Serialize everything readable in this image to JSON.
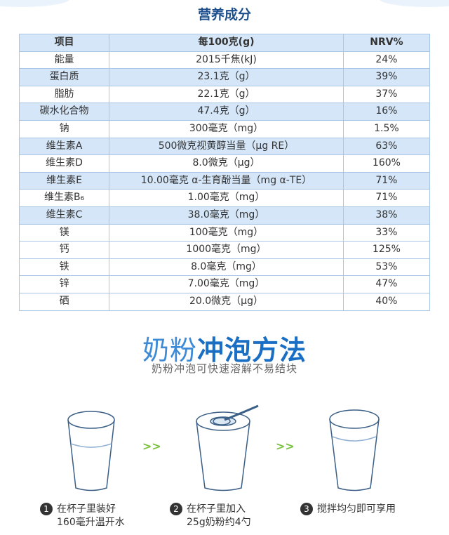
{
  "title": "营养成分",
  "table": {
    "header": [
      "项目",
      "每100克(g)",
      "NRV%"
    ],
    "rows": [
      [
        "能量",
        "2015千焦(kJ)",
        "24%"
      ],
      [
        "蛋白质",
        "23.1克（g）",
        "39%"
      ],
      [
        "脂肪",
        "22.1克（g）",
        "37%"
      ],
      [
        "碳水化合物",
        "47.4克（g）",
        "16%"
      ],
      [
        "钠",
        "300毫克（mg）",
        "1.5%"
      ],
      [
        "维生素A",
        "500微克视黄醇当量（μg RE）",
        "63%"
      ],
      [
        "维生素D",
        "8.0微克（μg）",
        "160%"
      ],
      [
        "维生素E",
        "10.00毫克 α-生育酚当量（mg α-TE）",
        "71%"
      ],
      [
        "维生素B₆",
        "1.00毫克（mg）",
        "71%"
      ],
      [
        "维生素C",
        "38.0毫克（mg）",
        "38%"
      ],
      [
        "镁",
        "100毫克（mg）",
        "33%"
      ],
      [
        "钙",
        "1000毫克（mg）",
        "125%"
      ],
      [
        "铁",
        "8.0毫克（mg）",
        "53%"
      ],
      [
        "锌",
        "7.00毫克（mg）",
        "47%"
      ],
      [
        "硒",
        "20.0微克（μg）",
        "40%"
      ]
    ]
  },
  "method": {
    "title_light": "奶粉",
    "title_bold": "冲泡方法",
    "subtitle": "奶粉冲泡可快速溶解不易结块",
    "arrows": [
      ">>",
      ">>"
    ],
    "steps": [
      {
        "number": "1",
        "lines": [
          "在杯子里装好",
          "160毫升温开水"
        ]
      },
      {
        "number": "2",
        "lines": [
          "在杯子里加入",
          "25g奶粉约4勺"
        ]
      },
      {
        "number": "3",
        "lines": [
          "搅拌均匀即可享用"
        ]
      }
    ]
  }
}
